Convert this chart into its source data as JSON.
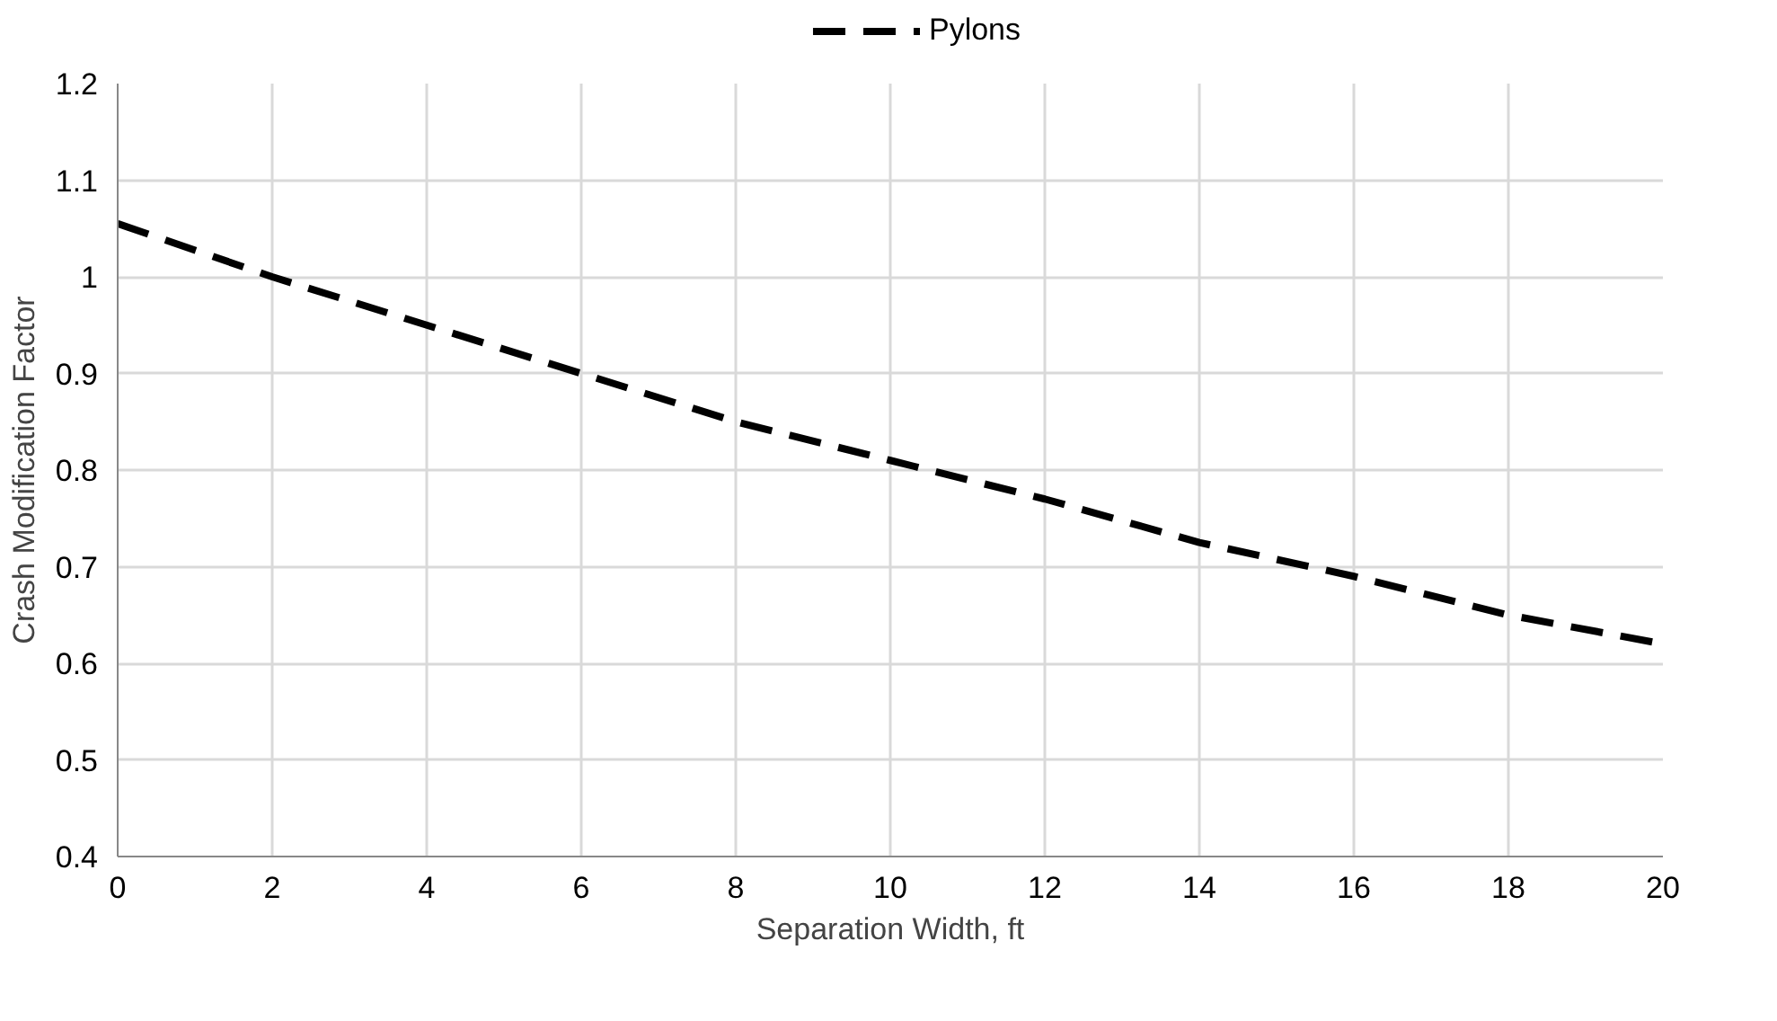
{
  "chart_data": {
    "type": "line",
    "xlabel": "Separation Width, ft",
    "ylabel": "Crash Modification Factor",
    "x": [
      0,
      2,
      4,
      6,
      8,
      10,
      12,
      14,
      16,
      18,
      20
    ],
    "series": [
      {
        "name": "Pylons",
        "color": "#000000",
        "values": [
          1.055,
          1.0,
          0.95,
          0.9,
          0.85,
          0.81,
          0.77,
          0.725,
          0.69,
          0.65,
          0.62
        ]
      }
    ],
    "xlim": [
      0,
      20
    ],
    "xticks": [
      0,
      2,
      4,
      6,
      8,
      10,
      12,
      14,
      16,
      18,
      20
    ],
    "ylim": [
      0.4,
      1.2
    ],
    "yticks": [
      {
        "value": 0.4,
        "label": "0.4"
      },
      {
        "value": 0.5,
        "label": "0.5"
      },
      {
        "value": 0.6,
        "label": "0.6"
      },
      {
        "value": 0.7,
        "label": "0.7"
      },
      {
        "value": 0.8,
        "label": "0.8"
      },
      {
        "value": 0.9,
        "label": "0.9"
      },
      {
        "value": 1.0,
        "label": "1"
      },
      {
        "value": 1.1,
        "label": "1.1"
      },
      {
        "value": 1.2,
        "label": "1.2"
      }
    ],
    "grid": true,
    "legend": "top",
    "line_style": "dashed",
    "marker": "none"
  }
}
